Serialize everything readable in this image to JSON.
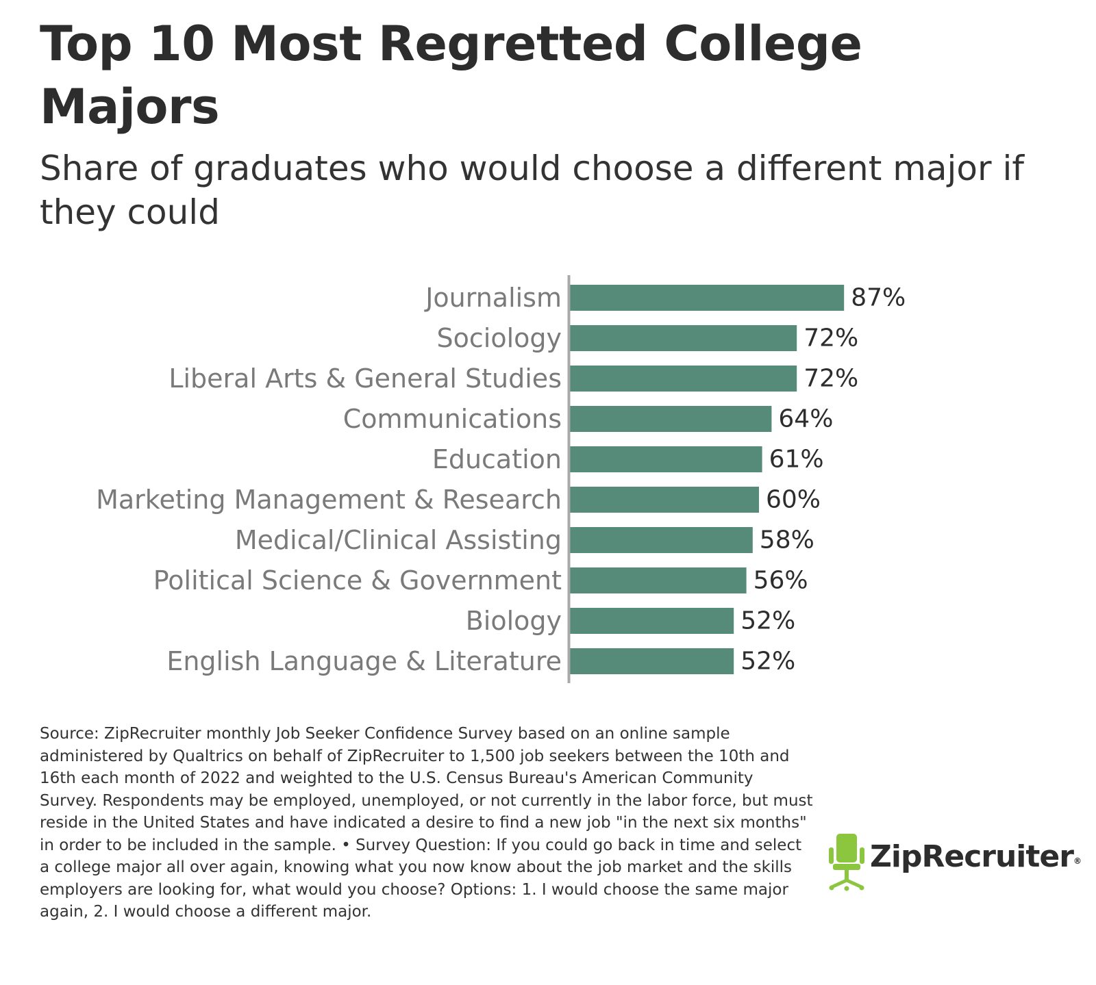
{
  "title": "Top 10 Most Regretted College Majors",
  "subtitle": "Share of graduates who would choose a different major if they could",
  "source": "Source: ZipRecruiter monthly Job Seeker Confidence Survey based on an online sample administered by Qualtrics on behalf of ZipRecruiter to 1,500 job seekers between the 10th and 16th each month of 2022 and weighted to the U.S. Census Bureau's American Community Survey. Respondents may be employed, unemployed, or not currently in the labor force, but must reside in the United States and have indicated a desire to find a new job \"in the next six months\" in order to be included in the sample. • Survey Question: If you could go back in time and select a college major all over again, knowing what you now know about the job market and the skills employers are looking for, what would you choose? Options: 1. I would choose the same major again, 2. I would choose a different major.",
  "logo": {
    "text": "ZipRecruiter",
    "mark": "®",
    "icon": "chair-icon"
  },
  "colors": {
    "bar": "#568a79",
    "axis": "#a9a9a9",
    "category_label": "#7a7a7a",
    "value_label": "#2d2d2d",
    "logo_green": "#8cc63f"
  },
  "chart_data": {
    "type": "bar",
    "orientation": "horizontal",
    "categories": [
      "Journalism",
      "Sociology",
      "Liberal Arts & General Studies",
      "Communications",
      "Education",
      "Marketing Management & Research",
      "Medical/Clinical Assisting",
      "Political Science & Government",
      "Biology",
      "English Language & Literature"
    ],
    "values": [
      87,
      72,
      72,
      64,
      61,
      60,
      58,
      56,
      52,
      52
    ],
    "value_labels": [
      "87%",
      "72%",
      "72%",
      "64%",
      "61%",
      "60%",
      "58%",
      "56%",
      "52%",
      "52%"
    ],
    "xlim": [
      0,
      100
    ],
    "title": "Top 10 Most Regretted College Majors",
    "subtitle": "Share of graduates who would choose a different major if they could",
    "grid": false,
    "legend": "none"
  }
}
